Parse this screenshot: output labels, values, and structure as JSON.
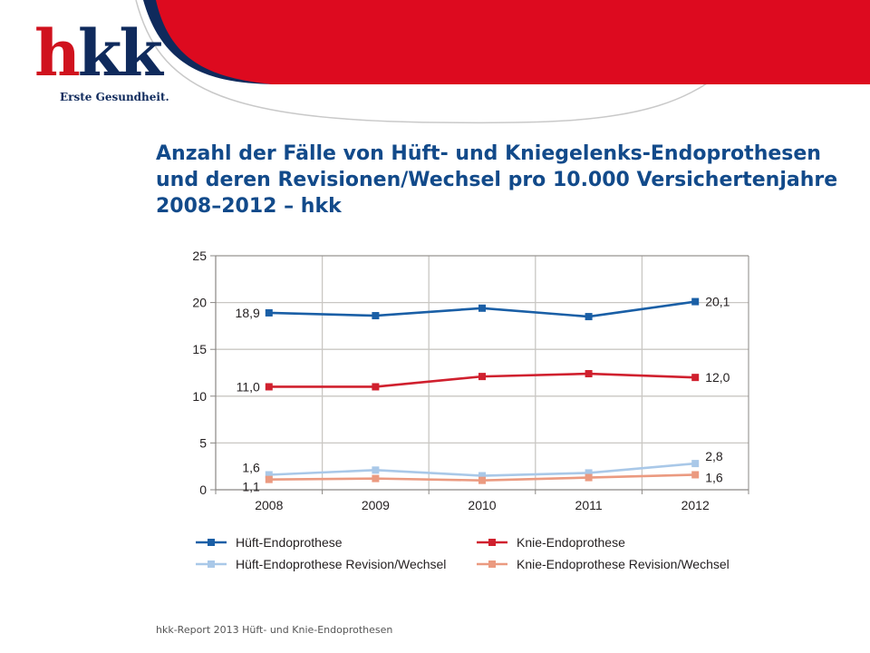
{
  "header": {
    "logo_text": "hkk",
    "logo_tagline": "Erste Gesundheit.",
    "title": "Anzahl der Fälle von Hüft- und Kniegelenks-Endoprothesen und deren Revisionen/Wechsel pro 10.000 Versichertenjahre 2008–2012 – hkk"
  },
  "colors": {
    "brand_red": "#d0121e",
    "brand_navy": "#0f2a5c",
    "title_blue": "#124a8a",
    "grid": "#c9c7c3",
    "axis": "#8a8784"
  },
  "chart_data": {
    "type": "line",
    "categories": [
      "2008",
      "2009",
      "2010",
      "2011",
      "2012"
    ],
    "ylim": [
      0,
      25
    ],
    "yticks": [
      0,
      5,
      10,
      15,
      20,
      25
    ],
    "grid": true,
    "legend_placement": "bottom",
    "xlabel": "",
    "ylabel": "",
    "series": [
      {
        "name": "Hüft-Endoprothese",
        "color": "#1a5fa6",
        "values": [
          18.9,
          18.6,
          19.4,
          18.5,
          20.1
        ],
        "labels": {
          "start": "18,9",
          "end": "20,1"
        }
      },
      {
        "name": "Knie-Endoprothese",
        "color": "#d0202e",
        "values": [
          11.0,
          11.0,
          12.1,
          12.4,
          12.0
        ],
        "labels": {
          "start": "11,0",
          "end": "12,0"
        }
      },
      {
        "name": "Hüft-Endoprothese Revision/Wechsel",
        "color": "#a9c8e8",
        "values": [
          1.6,
          2.1,
          1.5,
          1.8,
          2.8
        ],
        "labels": {
          "start": "1,6",
          "end": "2,8"
        }
      },
      {
        "name": "Knie-Endoprothese Revision/Wechsel",
        "color": "#eb9a80",
        "values": [
          1.1,
          1.2,
          1.0,
          1.3,
          1.6
        ],
        "labels": {
          "start": "1,1",
          "end": "1,6"
        }
      }
    ]
  },
  "footer": {
    "text": "hkk-Report 2013 Hüft- und Knie-Endoprothesen"
  }
}
